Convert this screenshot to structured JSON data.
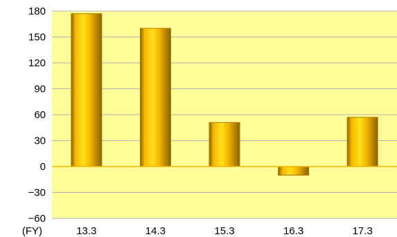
{
  "chart_data": {
    "type": "bar",
    "x_unit_label": "(FY)",
    "categories": [
      "13.3",
      "14.3",
      "15.3",
      "16.3",
      "17.3"
    ],
    "values": [
      177,
      160,
      51,
      -10,
      57
    ],
    "ylim": [
      -60,
      180
    ],
    "yticks": [
      180,
      150,
      120,
      90,
      60,
      30,
      0,
      -30,
      -60
    ],
    "ytick_labels": [
      "180",
      "150",
      "120",
      "90",
      "60",
      "30",
      "0",
      "−30",
      "−60"
    ],
    "grid": true,
    "legend": "none",
    "colors": {
      "plot_background": "#ffff99",
      "gridline": "#b3b3b3",
      "zero_line": "#f2b400",
      "bar_light": "#ffe11a",
      "bar_mid": "#f5b700",
      "bar_dark": "#8a6200",
      "bar_edge": "#b07800"
    }
  }
}
